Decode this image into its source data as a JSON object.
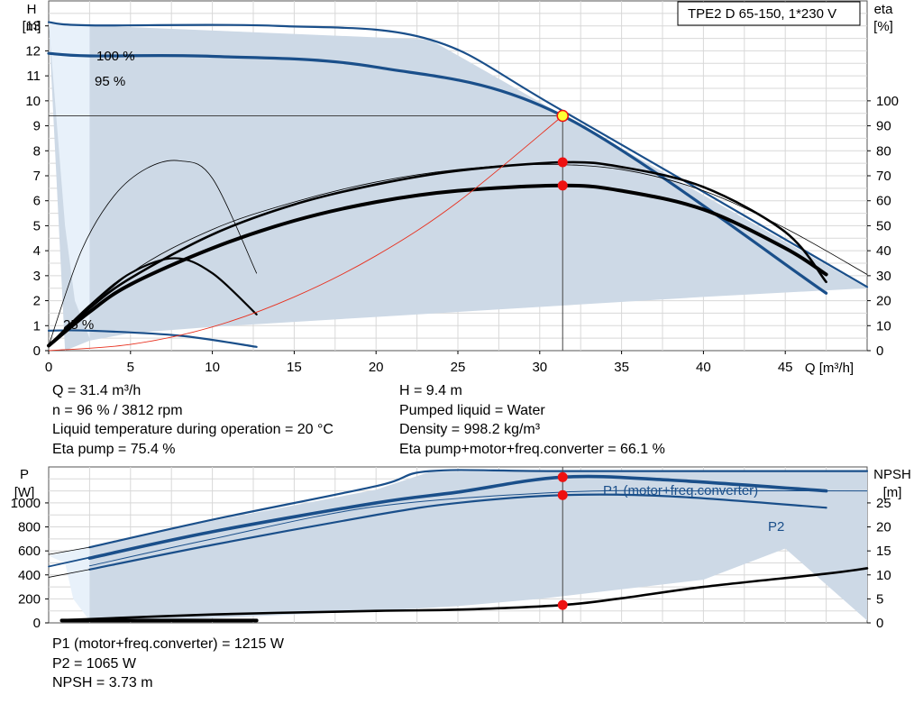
{
  "title_box": "TPE2 D 65-150, 1*230 V",
  "colors": {
    "area_fill": "#cdd9e6",
    "area_left_fill": "#e8f1fa",
    "curve_blue": "#1a4f8a",
    "curve_black": "#000000",
    "system_curve": "#e8301e",
    "marker_red": "#ee1111",
    "marker_yellow": "#ffff33",
    "grid": "#d8d8d8"
  },
  "chart_data": [
    {
      "type": "line",
      "id": "head",
      "xlabel": "Q [m³/h]",
      "ylabel_line1": "H",
      "ylabel_line2": "[m]",
      "y2label_line1": "eta",
      "y2label_line2": "[%]",
      "xlim": [
        0,
        50
      ],
      "ylim": [
        0,
        14
      ],
      "y2lim": [
        0,
        140
      ],
      "x_ticks": [
        0,
        5,
        10,
        15,
        20,
        25,
        30,
        35,
        40,
        45
      ],
      "y_ticks": [
        0,
        1,
        2,
        3,
        4,
        5,
        6,
        7,
        8,
        9,
        10,
        11,
        12,
        13
      ],
      "y2_ticks": [
        0,
        10,
        20,
        30,
        40,
        50,
        60,
        70,
        80,
        90,
        100
      ],
      "grid": true,
      "annotations": [
        {
          "text": "100 %",
          "x": 3.2,
          "y": 13.2
        },
        {
          "text": "95 %",
          "x": 3.1,
          "y": 12.0
        },
        {
          "text": "25 %",
          "x": 1.0,
          "y": 0.95
        }
      ],
      "operating_point": {
        "x": 31.4,
        "y": 9.4
      },
      "series": [
        {
          "role": "area",
          "x": [
            0,
            2.5,
            23.3,
            50,
            50,
            40,
            30,
            20,
            10,
            5,
            2.5,
            1
          ],
          "y": [
            13.15,
            13.02,
            12.45,
            2.5,
            2.5,
            2.15,
            1.75,
            1.35,
            0.95,
            0.7,
            0.4,
            0
          ]
        },
        {
          "role": "area_left",
          "x": [
            0,
            2.5,
            2.5,
            1.6,
            1.0,
            0
          ],
          "y": [
            13.15,
            13.02,
            0.5,
            2.0,
            5.0,
            13.15
          ]
        },
        {
          "role": "head_100",
          "x": [
            0,
            2.5,
            14,
            23.3,
            31.4,
            50
          ],
          "y": [
            13.15,
            13.02,
            13.0,
            12.45,
            9.6,
            2.55
          ]
        },
        {
          "role": "head_95",
          "x": [
            0,
            2.5,
            10,
            20,
            31.4,
            47.5
          ],
          "y": [
            11.9,
            11.8,
            11.78,
            11.35,
            9.4,
            2.3
          ]
        },
        {
          "role": "head_25",
          "x": [
            0,
            2.5,
            8,
            12.7
          ],
          "y": [
            0.8,
            0.8,
            0.6,
            0.15
          ]
        },
        {
          "role": "eta_thin_small",
          "x": [
            0,
            2,
            4,
            6,
            8,
            10,
            12.7
          ],
          "y": [
            0.2,
            4.0,
            6.2,
            7.3,
            7.6,
            6.9,
            3.1
          ]
        },
        {
          "role": "eta_bold_small",
          "x": [
            0,
            2.5,
            5,
            7.7,
            10,
            12.7
          ],
          "y": [
            0.2,
            1.8,
            3.1,
            3.7,
            3.1,
            1.45
          ]
        },
        {
          "role": "eta_thin_big",
          "x": [
            0,
            5,
            10,
            15,
            20,
            25,
            30,
            35,
            40,
            45,
            50
          ],
          "y": [
            0.2,
            3.1,
            4.85,
            5.95,
            6.75,
            7.25,
            7.45,
            7.25,
            6.4,
            4.9,
            3.05
          ]
        },
        {
          "role": "eta_pump",
          "x": [
            0,
            2.5,
            5,
            10,
            15,
            20,
            25,
            31.4,
            35,
            40,
            45,
            47.5
          ],
          "y": [
            0.2,
            1.7,
            2.9,
            4.65,
            5.85,
            6.65,
            7.2,
            7.54,
            7.35,
            6.55,
            4.75,
            2.75
          ]
        },
        {
          "role": "eta_total",
          "x": [
            0,
            2.5,
            5,
            10,
            15,
            20,
            25,
            31.4,
            35,
            40,
            45,
            47.5
          ],
          "y": [
            0.2,
            1.55,
            2.65,
            4.1,
            5.2,
            5.95,
            6.4,
            6.61,
            6.4,
            5.65,
            4.1,
            3.05
          ]
        },
        {
          "role": "system_curve",
          "x": [
            0,
            5,
            10,
            15,
            20,
            25,
            31.4
          ],
          "y": [
            0,
            0.25,
            0.95,
            2.15,
            3.8,
            5.95,
            9.4
          ]
        }
      ],
      "markers": [
        {
          "x": 31.4,
          "y": 9.4,
          "type": "operating"
        },
        {
          "x": 31.4,
          "y": 7.54,
          "type": "point"
        },
        {
          "x": 31.4,
          "y": 6.61,
          "type": "point"
        }
      ]
    },
    {
      "type": "line",
      "id": "power",
      "ylabel_line1": "P",
      "ylabel_line2": "[W]",
      "y2label_line1": "NPSH",
      "y2label_line2": "[m]",
      "xlim": [
        0,
        50
      ],
      "ylim": [
        0,
        1300
      ],
      "y2lim": [
        0,
        32.5
      ],
      "y_ticks": [
        0,
        200,
        400,
        600,
        800,
        1000
      ],
      "y2_ticks": [
        0,
        5,
        10,
        15,
        20,
        25
      ],
      "grid": true,
      "legend": [
        {
          "text": "P1 (motor+freq.converter)",
          "series_role": "p1_bold"
        },
        {
          "text": "P2",
          "series_role": "p2_95"
        }
      ],
      "series": [
        {
          "role": "area",
          "x": [
            2.5,
            10,
            20,
            23.3,
            31.4,
            40,
            50,
            50,
            45,
            40,
            35,
            30,
            25,
            20,
            15,
            10,
            5,
            2.5
          ],
          "y": [
            640,
            850,
            1110,
            1260,
            1265,
            1265,
            1265,
            20,
            620,
            360,
            280,
            200,
            140,
            100,
            70,
            40,
            20,
            10
          ]
        },
        {
          "role": "area_left",
          "x": [
            0,
            2.5,
            2.5,
            1.5,
            1,
            0
          ],
          "y": [
            560,
            640,
            20,
            200,
            500,
            560
          ]
        },
        {
          "role": "p1_100",
          "x": [
            2.5,
            10,
            20,
            23.3,
            31.4,
            50
          ],
          "y": [
            630,
            860,
            1140,
            1265,
            1265,
            1265
          ]
        },
        {
          "role": "p1_bold",
          "x": [
            2.5,
            10,
            20,
            25,
            31.4,
            38,
            47.5
          ],
          "y": [
            540,
            760,
            1000,
            1090,
            1215,
            1190,
            1100
          ]
        },
        {
          "role": "p2_95",
          "x": [
            2.5,
            10,
            20,
            25,
            31.4,
            38,
            47.5
          ],
          "y": [
            445,
            650,
            900,
            1000,
            1065,
            1055,
            960
          ]
        },
        {
          "role": "p2_100",
          "x": [
            2.5,
            10,
            20,
            31.4,
            40,
            50
          ],
          "y": [
            475,
            700,
            970,
            1090,
            1100,
            1100
          ]
        },
        {
          "role": "p_thin_left_a",
          "x": [
            0,
            2.5
          ],
          "y": [
            570,
            630
          ]
        },
        {
          "role": "p_thin_left_b",
          "x": [
            0,
            2.5
          ],
          "y": [
            470,
            545
          ]
        },
        {
          "role": "p_thin_left_c",
          "x": [
            0,
            2.5
          ],
          "y": [
            380,
            445
          ]
        },
        {
          "role": "npsh",
          "x": [
            0.8,
            10,
            20,
            25,
            31.4,
            35,
            40,
            47.5,
            50
          ],
          "y": [
            22,
            70,
            100,
            110,
            149,
            205,
            300,
            410,
            455
          ]
        },
        {
          "role": "npsh_low",
          "x": [
            0.8,
            12.7
          ],
          "y": [
            20,
            20
          ]
        }
      ],
      "markers": [
        {
          "x": 31.4,
          "y": 1215
        },
        {
          "x": 31.4,
          "y": 1065
        },
        {
          "x": 31.4,
          "y": 149
        }
      ]
    }
  ],
  "info_left": [
    "Q = 31.4 m³/h",
    "n = 96 % / 3812 rpm",
    "Liquid temperature during operation = 20 °C",
    "Eta pump = 75.4 %"
  ],
  "info_right": [
    "H = 9.4 m",
    "Pumped liquid = Water",
    "Density = 998.2 kg/m³",
    "Eta pump+motor+freq.converter = 66.1 %"
  ],
  "info_bottom": [
    "P1 (motor+freq.converter) = 1215 W",
    "P2 = 1065 W",
    "NPSH = 3.73 m"
  ]
}
